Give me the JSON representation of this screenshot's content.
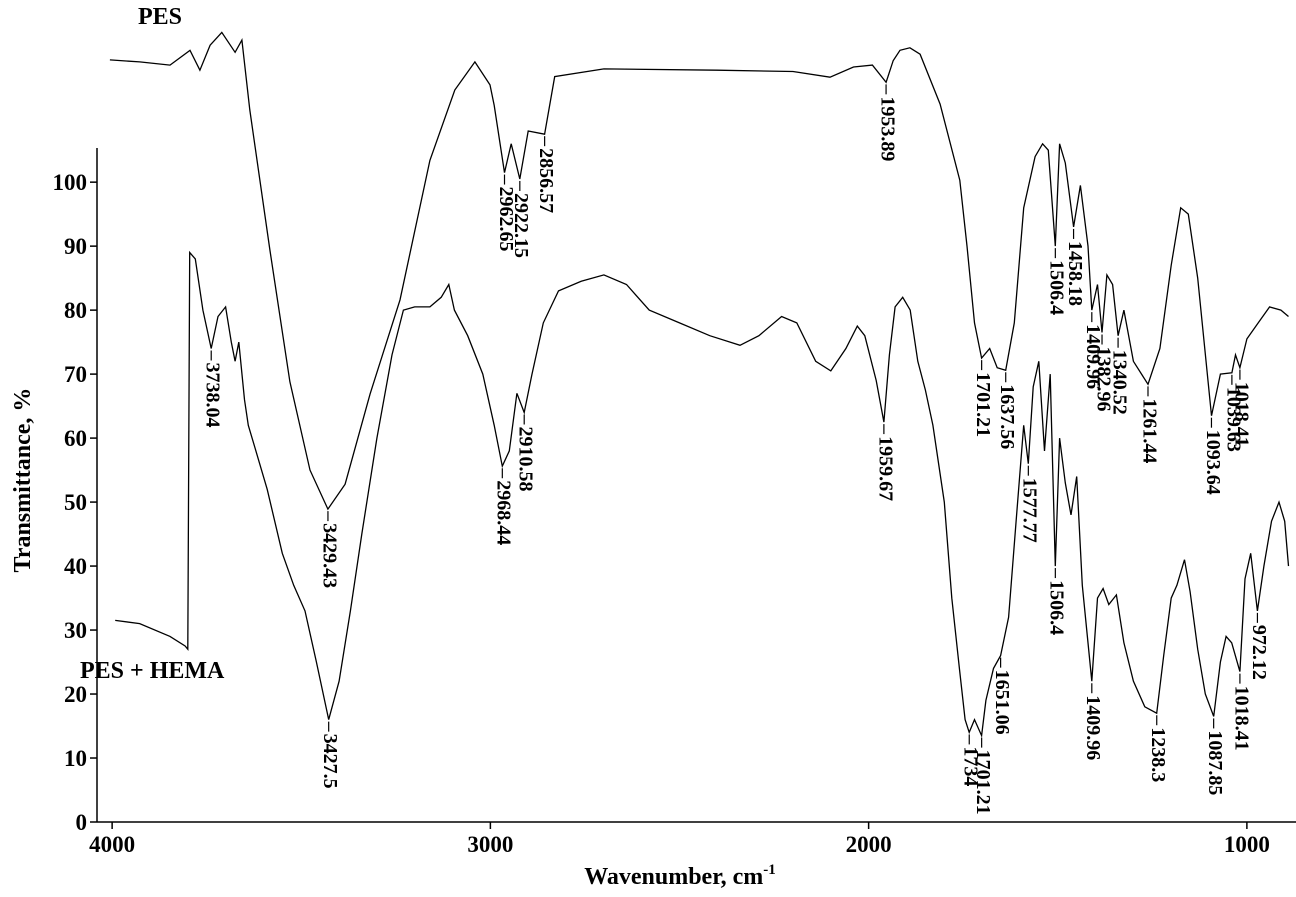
{
  "chart_data": {
    "type": "line",
    "xlabel": "Wavenumber, cm",
    "xlabel_superscript": "-1",
    "ylabel": "Transmittance, %",
    "xlim": [
      4040,
      886
    ],
    "xticks": [
      4000,
      3000,
      2000,
      1000
    ],
    "ylim": [
      0,
      128
    ],
    "yticks": [
      0,
      10,
      20,
      30,
      40,
      50,
      60,
      70,
      80,
      90,
      100
    ],
    "grid": false,
    "series": [
      {
        "name": "PES",
        "color": "#000000",
        "x": [
          4006,
          3927,
          3847,
          3794,
          3768,
          3741,
          3710,
          3675,
          3657,
          3636,
          3583,
          3530,
          3477,
          3429.43,
          3384,
          3318,
          3239,
          3160,
          3094,
          3041,
          3001,
          2990,
          2962.65,
          2945,
          2922.15,
          2900,
          2856.57,
          2830,
          2700,
          2400,
          2200,
          2102,
          2040,
          1990,
          1953.89,
          1935,
          1917,
          1891,
          1864,
          1811,
          1759,
          1740,
          1720,
          1701.21,
          1680,
          1660,
          1637.56,
          1615,
          1590,
          1560,
          1540,
          1525,
          1506.4,
          1495,
          1480,
          1458.18,
          1440,
          1420,
          1409.96,
          1395,
          1382.96,
          1370,
          1355,
          1340.52,
          1325,
          1300,
          1261.44,
          1230,
          1200,
          1175,
          1155,
          1130,
          1093.64,
          1070,
          1039.63,
          1030,
          1018.41,
          1000,
          970,
          940,
          910,
          890
        ],
        "values": [
          119.1,
          118.8,
          118.3,
          120.6,
          117.5,
          121.4,
          123.4,
          120.3,
          122.2,
          111.3,
          89.4,
          68.8,
          55,
          48.9,
          52.8,
          66.9,
          81.6,
          103.4,
          114.4,
          118.8,
          115.2,
          112,
          101.5,
          106,
          100.5,
          108,
          107.5,
          116.5,
          117.7,
          117.5,
          117.3,
          116.4,
          118,
          118.3,
          115.6,
          119,
          120.6,
          121,
          120,
          112.2,
          100.3,
          90,
          78,
          72.5,
          74,
          71,
          70.6,
          78,
          96,
          104,
          106,
          105,
          90,
          106,
          103,
          93,
          99.5,
          90,
          80,
          84,
          76.5,
          85.5,
          84,
          76,
          80,
          72,
          68.4,
          74,
          87,
          96,
          95,
          85,
          63.5,
          70,
          70.2,
          73,
          71,
          75.5,
          78,
          80.5,
          80,
          79
        ]
      },
      {
        "name": "PES + HEMA",
        "color": "#000000",
        "x": [
          3992,
          3927,
          3847,
          3807,
          3800,
          3795,
          3780,
          3760,
          3738.04,
          3720,
          3700,
          3685,
          3675,
          3665,
          3650,
          3640,
          3620,
          3590,
          3550,
          3520,
          3490,
          3460,
          3427.5,
          3400,
          3370,
          3340,
          3300,
          3260,
          3230,
          3200,
          3160,
          3130,
          3110,
          3095,
          3060,
          3020,
          2990,
          2968.44,
          2950,
          2930,
          2910.58,
          2890,
          2860,
          2820,
          2760,
          2700,
          2640,
          2580,
          2500,
          2420,
          2340,
          2290,
          2230,
          2190,
          2140,
          2100,
          2060,
          2030,
          2010,
          1980,
          1959.67,
          1945,
          1930,
          1910,
          1890,
          1870,
          1850,
          1830,
          1800,
          1780,
          1760,
          1745,
          1734,
          1720,
          1701.21,
          1690,
          1670,
          1651.06,
          1630,
          1610,
          1590,
          1577.77,
          1565,
          1550,
          1535,
          1520,
          1506.4,
          1495,
          1480,
          1465,
          1450,
          1435,
          1409.96,
          1395,
          1380,
          1365,
          1345,
          1325,
          1300,
          1270,
          1238.3,
          1220,
          1200,
          1185,
          1165,
          1150,
          1130,
          1110,
          1087.85,
          1070,
          1055,
          1040,
          1018.41,
          1005,
          990,
          972.12,
          955,
          935,
          915,
          900,
          890
        ],
        "values": [
          31.5,
          31,
          29,
          27.5,
          27,
          89,
          88,
          80,
          74,
          79,
          80.5,
          75,
          72,
          75,
          66,
          62,
          58,
          52,
          42,
          37,
          33,
          25,
          16,
          22,
          33,
          45,
          60,
          73,
          80,
          80.5,
          80.5,
          82,
          84,
          80,
          76,
          70,
          62,
          55.6,
          58,
          67,
          64,
          70,
          78,
          83,
          84.5,
          85.5,
          84,
          80,
          78,
          76,
          74.5,
          76,
          79,
          78,
          72,
          70.5,
          74,
          77.5,
          76,
          69,
          62.5,
          73,
          80.5,
          82,
          80,
          72,
          67.5,
          62,
          50,
          35,
          24,
          16,
          14,
          16,
          13.5,
          19,
          24,
          26,
          32,
          47,
          62,
          56,
          68,
          72,
          58,
          70,
          40,
          60,
          53,
          48,
          54,
          37,
          22,
          35,
          36.5,
          34,
          35.5,
          28,
          22,
          18,
          17,
          26,
          35,
          37,
          41,
          36,
          27,
          20,
          16.5,
          25,
          29,
          28,
          23.5,
          38,
          42,
          33,
          40,
          47,
          50,
          47,
          40
        ]
      }
    ],
    "annotations": [
      {
        "series": 0,
        "x": 3429.43,
        "y": 48.9
      },
      {
        "series": 0,
        "x": 2962.65,
        "y": 101.5
      },
      {
        "series": 0,
        "x": 2922.15,
        "y": 100.5
      },
      {
        "series": 0,
        "x": 2856.57,
        "y": 107.5
      },
      {
        "series": 0,
        "x": 1953.89,
        "y": 115.6
      },
      {
        "series": 0,
        "x": 1701.21,
        "y": 72.5
      },
      {
        "series": 0,
        "x": 1637.56,
        "y": 70.6
      },
      {
        "series": 0,
        "x": 1506.4,
        "y": 90
      },
      {
        "series": 0,
        "x": 1458.18,
        "y": 93
      },
      {
        "series": 0,
        "x": 1409.96,
        "y": 80
      },
      {
        "series": 0,
        "x": 1382.96,
        "y": 76.5
      },
      {
        "series": 0,
        "x": 1340.52,
        "y": 76
      },
      {
        "series": 0,
        "x": 1261.44,
        "y": 68.4
      },
      {
        "series": 0,
        "x": 1093.64,
        "y": 63.5
      },
      {
        "series": 0,
        "x": 1039.63,
        "y": 70.2
      },
      {
        "series": 0,
        "x": 1018.41,
        "y": 71
      },
      {
        "series": 1,
        "x": 3738.04,
        "y": 74
      },
      {
        "series": 1,
        "x": 3427.5,
        "y": 16
      },
      {
        "series": 1,
        "x": 2968.44,
        "y": 55.6
      },
      {
        "series": 1,
        "x": 2910.58,
        "y": 64
      },
      {
        "series": 1,
        "x": 1959.67,
        "y": 62.5
      },
      {
        "series": 1,
        "x": 1734,
        "y": 14
      },
      {
        "series": 1,
        "x": 1701.21,
        "y": 13.5
      },
      {
        "series": 1,
        "x": 1651.06,
        "y": 26
      },
      {
        "series": 1,
        "x": 1577.77,
        "y": 56
      },
      {
        "series": 1,
        "x": 1506.4,
        "y": 40
      },
      {
        "series": 1,
        "x": 1409.96,
        "y": 22
      },
      {
        "series": 1,
        "x": 1238.3,
        "y": 17
      },
      {
        "series": 1,
        "x": 1087.85,
        "y": 16.5
      },
      {
        "series": 1,
        "x": 1018.41,
        "y": 23.5
      },
      {
        "series": 1,
        "x": 972.12,
        "y": 33
      }
    ]
  }
}
